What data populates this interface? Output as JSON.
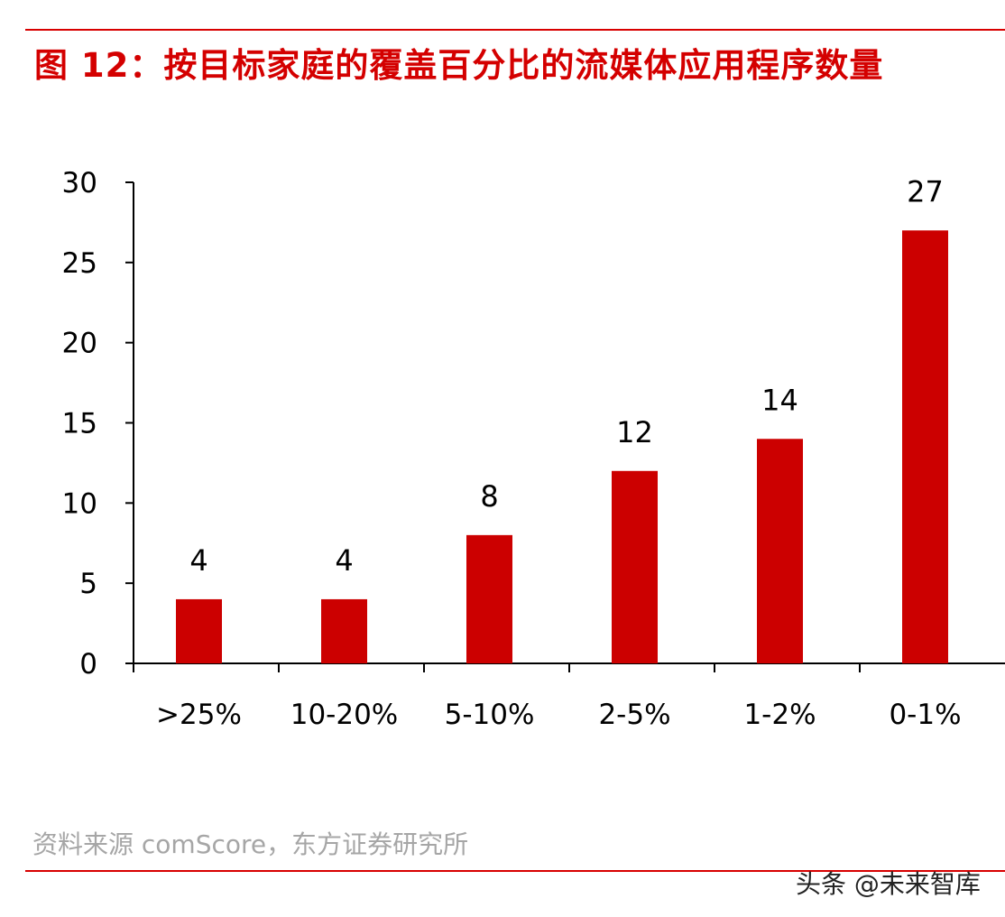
{
  "colors": {
    "bar": "#cc0000",
    "title": "#d40000",
    "rule": "#d80000",
    "axis": "#000000",
    "source_text": "#a6a6a6"
  },
  "chart_data": {
    "type": "bar",
    "title": "图 12：按目标家庭的覆盖百分比的流媒体应用程序数量",
    "xlabel": "",
    "ylabel": "",
    "categories": [
      ">25%",
      "10-20%",
      "5-10%",
      "2-5%",
      "1-2%",
      "0-1%"
    ],
    "values": [
      4,
      4,
      8,
      12,
      14,
      27
    ],
    "ylim": [
      0,
      30
    ],
    "yticks": [
      0,
      5,
      10,
      15,
      20,
      25,
      30
    ],
    "data_labels": true,
    "grid": false,
    "legend": "none"
  },
  "footer": {
    "source": "资料来源 comScore，东方证券研究所",
    "watermark": "头条 @未来智库"
  }
}
